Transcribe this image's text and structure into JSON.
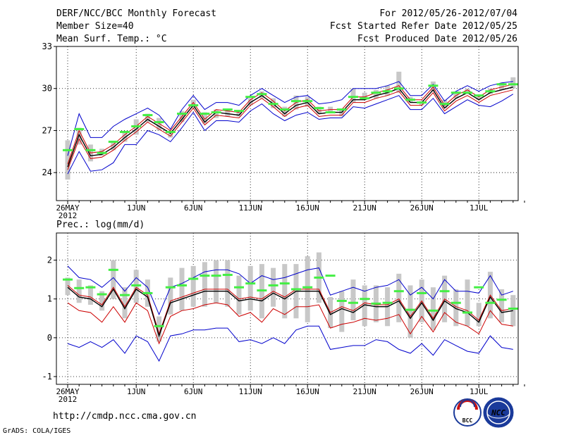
{
  "header": {
    "title_left": "DERF/NCC/BCC Monthly Forecast",
    "member_size": "Member Size=40",
    "variable_top": "Mean Surf. Temp.: °C",
    "period": "For 2012/05/26-2012/07/04",
    "started": "Fcst Started Refer Date 2012/05/25",
    "produced": "Fcst Produced Date 2012/05/26"
  },
  "footer": {
    "url": "http://cmdp.ncc.cma.gov.cn",
    "credit": "GrADS: COLA/IGES",
    "logo_bcc": "BCC",
    "logo_ncc": "NCC"
  },
  "colors": {
    "ensemble_bar": "#c8c8c8",
    "ensemble_mean": "#44ee44",
    "max_line": "#0000cc",
    "mean_line": "#000000",
    "red_line": "#cc0000"
  },
  "chart_data": [
    {
      "type": "line",
      "title": "Mean Surf. Temp.: °C",
      "xlabel": "",
      "ylabel": "",
      "ylim": [
        22,
        33
      ],
      "y_ticks": [
        24,
        27,
        30,
        33
      ],
      "grid": "dotted",
      "x_day_range": [
        0,
        40
      ],
      "x_ticks": [
        {
          "day": 0,
          "label": "26MAY",
          "sub": "2012"
        },
        {
          "day": 6,
          "label": "1JUN"
        },
        {
          "day": 11,
          "label": "6JUN"
        },
        {
          "day": 16,
          "label": "11JUN"
        },
        {
          "day": 21,
          "label": "16JUN"
        },
        {
          "day": 26,
          "label": "21JUN"
        },
        {
          "day": 31,
          "label": "26JUN"
        },
        {
          "day": 36,
          "label": "1JUL"
        }
      ],
      "series": [
        {
          "name": "upper",
          "color": "#0000cc",
          "values": [
            25.2,
            28.2,
            26.5,
            26.5,
            27.3,
            27.8,
            28.2,
            28.6,
            28.1,
            27.1,
            28.5,
            29.5,
            28.5,
            29.0,
            29.0,
            28.8,
            29.5,
            30.0,
            29.5,
            29.0,
            29.4,
            29.5,
            28.9,
            29.0,
            29.2,
            30.0,
            30.0,
            30.0,
            30.2,
            30.5,
            29.5,
            29.5,
            30.3,
            29.1,
            29.8,
            30.2,
            29.8,
            30.2,
            30.4,
            30.5
          ]
        },
        {
          "name": "red_upper",
          "color": "#cc0000",
          "values": [
            24.6,
            27.0,
            25.4,
            25.5,
            26.0,
            26.7,
            27.3,
            28.0,
            27.5,
            27.0,
            28.0,
            29.0,
            27.8,
            28.5,
            28.4,
            28.3,
            29.2,
            29.7,
            29.1,
            28.4,
            29.0,
            29.2,
            28.4,
            28.5,
            28.5,
            29.4,
            29.4,
            29.7,
            29.9,
            30.2,
            29.2,
            29.2,
            30.1,
            28.8,
            29.5,
            29.9,
            29.4,
            29.9,
            30.1,
            30.3
          ]
        },
        {
          "name": "mean",
          "color": "#000000",
          "values": [
            24.4,
            26.7,
            25.2,
            25.3,
            25.8,
            26.5,
            27.1,
            27.8,
            27.3,
            26.8,
            27.8,
            28.8,
            27.6,
            28.3,
            28.2,
            28.1,
            29.0,
            29.5,
            28.9,
            28.2,
            28.8,
            29.0,
            28.2,
            28.3,
            28.3,
            29.2,
            29.2,
            29.5,
            29.7,
            30.0,
            29.0,
            29.0,
            29.9,
            28.6,
            29.3,
            29.7,
            29.2,
            29.7,
            29.9,
            30.1
          ]
        },
        {
          "name": "red_lower",
          "color": "#cc0000",
          "values": [
            24.2,
            26.4,
            25.0,
            25.1,
            25.6,
            26.3,
            26.9,
            27.6,
            27.1,
            26.6,
            27.6,
            28.6,
            27.4,
            28.1,
            28.0,
            27.9,
            28.8,
            29.3,
            28.7,
            28.0,
            28.6,
            28.8,
            28.0,
            28.1,
            28.1,
            29.0,
            29.0,
            29.3,
            29.5,
            29.8,
            28.8,
            28.8,
            29.7,
            28.4,
            29.1,
            29.5,
            29.0,
            29.5,
            29.7,
            29.9
          ]
        },
        {
          "name": "lower",
          "color": "#0000cc",
          "values": [
            23.9,
            25.5,
            24.1,
            24.2,
            24.7,
            26.0,
            26.0,
            27.0,
            26.7,
            26.2,
            27.2,
            28.3,
            27.0,
            27.7,
            27.7,
            27.6,
            28.4,
            28.9,
            28.2,
            27.7,
            28.1,
            28.3,
            27.8,
            27.9,
            27.9,
            28.7,
            28.6,
            28.9,
            29.2,
            29.5,
            28.5,
            28.5,
            29.3,
            28.2,
            28.7,
            29.2,
            28.8,
            28.7,
            29.1,
            29.6
          ]
        }
      ],
      "ensemble_bars": [
        [
          23.5,
          26.3
        ],
        [
          26.0,
          27.2
        ],
        [
          24.8,
          26.0
        ],
        [
          25.2,
          25.7
        ],
        [
          25.6,
          26.2
        ],
        [
          26.2,
          26.9
        ],
        [
          26.7,
          27.8
        ],
        [
          27.6,
          28.2
        ],
        [
          27.0,
          27.9
        ],
        [
          26.5,
          27.0
        ],
        [
          27.6,
          28.4
        ],
        [
          28.6,
          29.2
        ],
        [
          27.5,
          28.3
        ],
        [
          27.9,
          28.5
        ],
        [
          28.0,
          28.5
        ],
        [
          28.0,
          28.4
        ],
        [
          28.8,
          29.3
        ],
        [
          29.3,
          29.8
        ],
        [
          28.6,
          29.3
        ],
        [
          28.0,
          28.7
        ],
        [
          28.5,
          29.5
        ],
        [
          28.7,
          29.4
        ],
        [
          28.2,
          28.7
        ],
        [
          28.3,
          28.7
        ],
        [
          28.0,
          28.5
        ],
        [
          29.0,
          30.0
        ],
        [
          29.2,
          29.7
        ],
        [
          29.3,
          29.9
        ],
        [
          29.5,
          30.2
        ],
        [
          29.7,
          31.2
        ],
        [
          29.0,
          29.4
        ],
        [
          28.8,
          29.1
        ],
        [
          29.8,
          30.5
        ],
        [
          28.6,
          29.2
        ],
        [
          29.3,
          29.8
        ],
        [
          29.6,
          30.0
        ],
        [
          29.2,
          29.5
        ],
        [
          29.6,
          30.0
        ],
        [
          29.9,
          30.4
        ],
        [
          30.0,
          30.8
        ]
      ],
      "ensemble_mean": [
        25.6,
        27.1,
        25.6,
        25.4,
        26.2,
        26.9,
        27.3,
        28.1,
        27.6,
        26.9,
        28.2,
        28.8,
        28.2,
        28.3,
        28.5,
        28.4,
        29.4,
        29.6,
        28.9,
        28.5,
        29.1,
        29.1,
        28.6,
        28.3,
        28.5,
        29.4,
        29.3,
        29.7,
        29.8,
        30.0,
        29.2,
        29.0,
        30.2,
        28.9,
        29.7,
        29.7,
        29.5,
        29.8,
        30.3,
        30.3
      ]
    },
    {
      "type": "line",
      "title": "Prec.: log(mm/d)",
      "xlabel": "",
      "ylabel": "",
      "ylim": [
        -1.2,
        2.7
      ],
      "y_ticks": [
        -1,
        0,
        1,
        2
      ],
      "grid": "dotted",
      "x_day_range": [
        0,
        40
      ],
      "x_ticks": [
        {
          "day": 0,
          "label": "26MAY",
          "sub": "2012"
        },
        {
          "day": 6,
          "label": "1JUN"
        },
        {
          "day": 11,
          "label": "6JUN"
        },
        {
          "day": 16,
          "label": "11JUN"
        },
        {
          "day": 21,
          "label": "16JUN"
        },
        {
          "day": 26,
          "label": "21JUN"
        },
        {
          "day": 31,
          "label": "26JUN"
        },
        {
          "day": 36,
          "label": "1JUL"
        }
      ],
      "series": [
        {
          "name": "upper",
          "color": "#0000cc",
          "values": [
            1.85,
            1.55,
            1.5,
            1.3,
            1.55,
            1.2,
            1.55,
            1.3,
            0.6,
            1.3,
            1.4,
            1.55,
            1.7,
            1.75,
            1.75,
            1.65,
            1.4,
            1.6,
            1.5,
            1.55,
            1.65,
            1.75,
            1.8,
            1.1,
            1.2,
            1.3,
            1.2,
            1.3,
            1.35,
            1.5,
            1.1,
            1.3,
            1.0,
            1.5,
            1.2,
            1.2,
            1.15,
            1.6,
            1.1,
            1.2
          ]
        },
        {
          "name": "red_upper",
          "color": "#cc0000",
          "values": [
            1.35,
            1.1,
            1.05,
            0.85,
            1.3,
            0.8,
            1.3,
            1.1,
            0.1,
            0.95,
            1.05,
            1.15,
            1.25,
            1.25,
            1.25,
            1.0,
            1.05,
            1.0,
            1.2,
            1.05,
            1.25,
            1.25,
            1.25,
            0.65,
            0.8,
            0.7,
            0.9,
            0.85,
            0.85,
            1.0,
            0.55,
            0.95,
            0.5,
            1.0,
            0.8,
            0.7,
            0.45,
            1.1,
            0.7,
            0.75
          ]
        },
        {
          "name": "mean",
          "color": "#000000",
          "values": [
            1.3,
            1.05,
            1.0,
            0.8,
            1.25,
            0.75,
            1.25,
            1.05,
            0.05,
            0.9,
            1.0,
            1.1,
            1.2,
            1.2,
            1.2,
            0.95,
            1.0,
            0.95,
            1.15,
            1.0,
            1.2,
            1.2,
            1.2,
            0.6,
            0.75,
            0.65,
            0.85,
            0.8,
            0.8,
            0.95,
            0.5,
            0.9,
            0.45,
            0.95,
            0.75,
            0.65,
            0.4,
            1.05,
            0.65,
            0.7
          ]
        },
        {
          "name": "red_lower",
          "color": "#cc0000",
          "values": [
            0.9,
            0.7,
            0.65,
            0.4,
            0.8,
            0.4,
            0.9,
            0.7,
            -0.15,
            0.55,
            0.7,
            0.75,
            0.85,
            0.9,
            0.85,
            0.55,
            0.65,
            0.4,
            0.75,
            0.6,
            0.8,
            0.8,
            0.85,
            0.25,
            0.35,
            0.4,
            0.5,
            0.45,
            0.5,
            0.6,
            0.1,
            0.55,
            0.15,
            0.65,
            0.4,
            0.3,
            0.1,
            0.7,
            0.35,
            0.3
          ]
        },
        {
          "name": "lower",
          "color": "#0000cc",
          "values": [
            -0.15,
            -0.25,
            -0.1,
            -0.25,
            -0.05,
            -0.4,
            0.05,
            -0.1,
            -0.6,
            0.05,
            0.1,
            0.2,
            0.2,
            0.25,
            0.25,
            -0.1,
            -0.05,
            -0.15,
            0.0,
            -0.15,
            0.2,
            0.3,
            0.3,
            -0.3,
            -0.25,
            -0.2,
            -0.2,
            -0.05,
            -0.1,
            -0.3,
            -0.4,
            -0.15,
            -0.45,
            -0.05,
            -0.2,
            -0.35,
            -0.4,
            0.05,
            -0.25,
            -0.3
          ]
        }
      ],
      "ensemble_bars": [
        [
          1.1,
          1.55
        ],
        [
          0.9,
          1.5
        ],
        [
          0.85,
          1.35
        ],
        [
          0.7,
          1.2
        ],
        [
          1.0,
          2.0
        ],
        [
          0.5,
          1.3
        ],
        [
          0.9,
          1.75
        ],
        [
          0.8,
          1.5
        ],
        [
          -0.1,
          0.55
        ],
        [
          0.6,
          1.55
        ],
        [
          0.7,
          1.8
        ],
        [
          0.8,
          1.85
        ],
        [
          0.8,
          1.95
        ],
        [
          0.9,
          2.0
        ],
        [
          0.8,
          2.0
        ],
        [
          0.6,
          1.6
        ],
        [
          0.7,
          1.85
        ],
        [
          0.5,
          1.9
        ],
        [
          0.8,
          1.8
        ],
        [
          0.5,
          1.9
        ],
        [
          0.5,
          1.9
        ],
        [
          0.4,
          2.1
        ],
        [
          0.9,
          2.2
        ],
        [
          0.25,
          1.05
        ],
        [
          0.15,
          1.2
        ],
        [
          0.45,
          1.5
        ],
        [
          0.3,
          1.35
        ],
        [
          0.4,
          1.35
        ],
        [
          0.3,
          1.3
        ],
        [
          0.4,
          1.65
        ],
        [
          0.0,
          1.35
        ],
        [
          0.4,
          1.5
        ],
        [
          0.2,
          1.3
        ],
        [
          0.4,
          1.6
        ],
        [
          0.3,
          1.25
        ],
        [
          0.3,
          1.5
        ],
        [
          0.3,
          0.9
        ],
        [
          0.5,
          1.7
        ],
        [
          0.4,
          1.25
        ],
        [
          0.3,
          1.1
        ]
      ],
      "ensemble_mean": [
        1.5,
        1.28,
        1.3,
        1.12,
        1.75,
        1.1,
        1.35,
        1.15,
        0.3,
        1.3,
        1.35,
        1.52,
        1.6,
        1.6,
        1.62,
        1.3,
        1.4,
        1.22,
        1.35,
        1.4,
        1.25,
        1.3,
        1.55,
        1.6,
        0.95,
        0.9,
        1.0,
        0.88,
        0.9,
        1.2,
        0.72,
        1.15,
        0.7,
        1.2,
        0.9,
        0.65,
        1.3,
        0.9,
        0.98,
        0.75
      ]
    }
  ]
}
